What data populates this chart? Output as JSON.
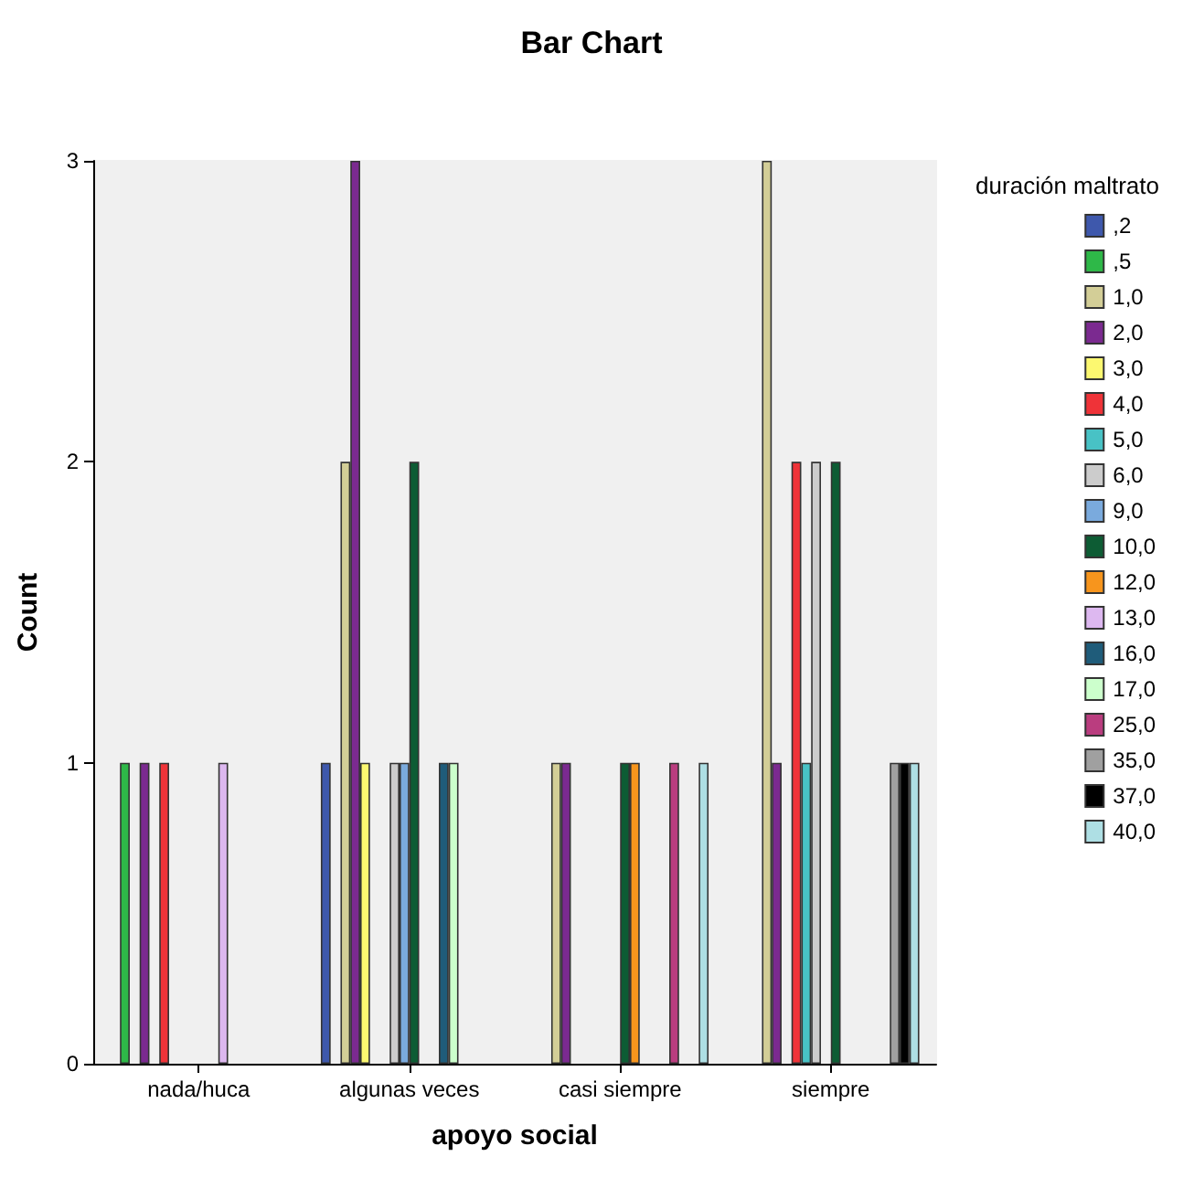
{
  "chart_data": {
    "type": "bar",
    "title": "Bar Chart",
    "xlabel": "apoyo social",
    "ylabel": "Count",
    "legend_title": "duración maltrato",
    "categories": [
      "nada/huca",
      "algunas veces",
      "casi siempre",
      "siempre"
    ],
    "series": [
      {
        "name": ",2",
        "color": "#3e58ac",
        "values": [
          null,
          1,
          null,
          null
        ]
      },
      {
        "name": ",5",
        "color": "#2eb848",
        "values": [
          1,
          null,
          null,
          null
        ]
      },
      {
        "name": "1,0",
        "color": "#d3ce97",
        "values": [
          null,
          2,
          1,
          3
        ]
      },
      {
        "name": "2,0",
        "color": "#7b2a90",
        "values": [
          1,
          3,
          1,
          1
        ]
      },
      {
        "name": "3,0",
        "color": "#fcf870",
        "values": [
          null,
          1,
          null,
          null
        ]
      },
      {
        "name": "4,0",
        "color": "#ef3338",
        "values": [
          1,
          null,
          null,
          2
        ]
      },
      {
        "name": "5,0",
        "color": "#48c2c5",
        "values": [
          null,
          null,
          null,
          1
        ]
      },
      {
        "name": "6,0",
        "color": "#cccccc",
        "values": [
          null,
          1,
          null,
          2
        ]
      },
      {
        "name": "9,0",
        "color": "#7aaadd",
        "values": [
          null,
          1,
          null,
          null
        ]
      },
      {
        "name": "10,0",
        "color": "#0d5c34",
        "values": [
          null,
          2,
          1,
          2
        ]
      },
      {
        "name": "12,0",
        "color": "#f7951d",
        "values": [
          null,
          null,
          1,
          null
        ]
      },
      {
        "name": "13,0",
        "color": "#ddb8f0",
        "values": [
          1,
          null,
          null,
          null
        ]
      },
      {
        "name": "16,0",
        "color": "#1f5c7a",
        "values": [
          null,
          1,
          null,
          null
        ]
      },
      {
        "name": "17,0",
        "color": "#ccffcc",
        "values": [
          null,
          1,
          null,
          null
        ]
      },
      {
        "name": "25,0",
        "color": "#ba3d7f",
        "values": [
          null,
          null,
          1,
          null
        ]
      },
      {
        "name": "35,0",
        "color": "#a0a0a0",
        "values": [
          null,
          null,
          null,
          1
        ]
      },
      {
        "name": "37,0",
        "color": "#000000",
        "values": [
          null,
          null,
          null,
          1
        ]
      },
      {
        "name": "40,0",
        "color": "#aedfe4",
        "values": [
          null,
          null,
          1,
          1
        ]
      }
    ],
    "ylim": [
      0,
      3
    ],
    "yticks": [
      0,
      1,
      2,
      3
    ],
    "grid": false,
    "legend": "right"
  }
}
